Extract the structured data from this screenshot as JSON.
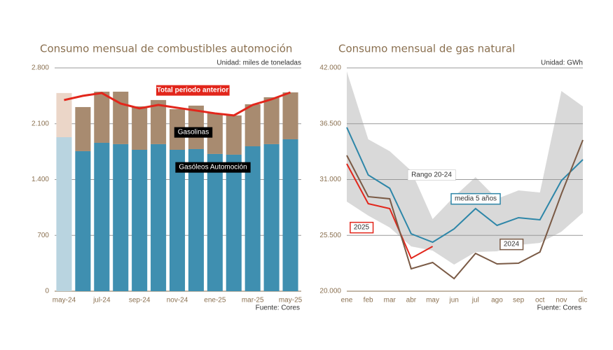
{
  "chart_data": [
    {
      "type": "bar",
      "stacked": true,
      "title": "Consumo mensual de combustibles automoción",
      "unit": "Unidad: miles de toneladas",
      "source": "Fuente: Cores",
      "categories": [
        "may-24",
        null,
        "jul-24",
        null,
        "sep-24",
        null,
        "nov-24",
        null,
        "ene-25",
        null,
        "mar-25",
        null,
        "may-25"
      ],
      "ylim": [
        0,
        2800
      ],
      "yticks": [
        0,
        700,
        {
          "value": 1400,
          "label": "1.400"
        },
        {
          "value": 2100,
          "label": "2.100"
        },
        {
          "value": 2800,
          "label": "2.800"
        }
      ],
      "grid": true,
      "series": [
        {
          "name": "Gasóleos Automoción",
          "color": "#3f8fb0",
          "colors": [
            "#b9d4e0",
            "#3f8fb0",
            "#3f8fb0",
            "#3f8fb0",
            "#3f8fb0",
            "#3f8fb0",
            "#3f8fb0",
            "#3f8fb0",
            "#3f8fb0",
            "#3f8fb0",
            "#3f8fb0",
            "#3f8fb0",
            "#3f8fb0"
          ],
          "values": [
            1931,
            1756,
            1861,
            1844,
            1773,
            1844,
            1773,
            1782,
            1721,
            1712,
            1817,
            1844,
            1905
          ]
        },
        {
          "name": "Gasolinas",
          "color": "#a88b70",
          "colors": [
            "#ebd6c8",
            "#a88b70",
            "#a88b70",
            "#a88b70",
            "#a88b70",
            "#a88b70",
            "#a88b70",
            "#a88b70",
            "#a88b70",
            "#a88b70",
            "#a88b70",
            "#a88b70",
            "#a88b70"
          ],
          "values": [
            554,
            553,
            641,
            658,
            545,
            553,
            510,
            545,
            509,
            492,
            527,
            588,
            588
          ]
        },
        {
          "name": "Total periodo anterior",
          "type": "line",
          "color": "#e2261b",
          "values": [
            2397,
            2450,
            2485,
            2353,
            2292,
            2336,
            2300,
            2265,
            2230,
            2204,
            2336,
            2406,
            2493
          ]
        }
      ]
    },
    {
      "type": "line",
      "title": "Consumo mensual de gas natural",
      "unit": "Unidad: GWh",
      "source": "Fuente: Cores",
      "categories": [
        "ene",
        "feb",
        "mar",
        "abr",
        "may",
        "jun",
        "jul",
        "ago",
        "sep",
        "oct",
        "nov",
        "dic"
      ],
      "ylim": [
        20000,
        42000
      ],
      "yticks": [
        {
          "value": 20000,
          "label": "20.000"
        },
        {
          "value": 25500,
          "label": "25.500"
        },
        {
          "value": 31000,
          "label": "31.000"
        },
        {
          "value": 36500,
          "label": "36.500"
        },
        {
          "value": 42000,
          "label": "42.000"
        }
      ],
      "grid": true,
      "range": {
        "name": "Rango 20-24",
        "color": "#d9d9d9",
        "high": [
          41657,
          34966,
          33794,
          31863,
          27104,
          29311,
          31242,
          29104,
          29932,
          29725,
          39725,
          38208
        ],
        "low": [
          28828,
          27449,
          26276,
          24414,
          24000,
          22621,
          23862,
          23931,
          24552,
          24759,
          25862,
          27725
        ]
      },
      "series": [
        {
          "name": "media 5 años",
          "color": "#2d86a8",
          "values": [
            36139,
            31449,
            30139,
            25655,
            24828,
            26138,
            28138,
            26483,
            27242,
            27035,
            30897,
            32966
          ]
        },
        {
          "name": "2025",
          "color": "#e2261b",
          "values": [
            32553,
            28621,
            28138,
            23242,
            24414,
            null,
            null,
            null,
            null,
            null,
            null,
            null
          ]
        },
        {
          "name": "2024",
          "color": "#7a5a45",
          "values": [
            33380,
            29311,
            29104,
            22207,
            22828,
            21241,
            23724,
            22690,
            22759,
            23862,
            29587,
            34897
          ]
        }
      ]
    }
  ]
}
